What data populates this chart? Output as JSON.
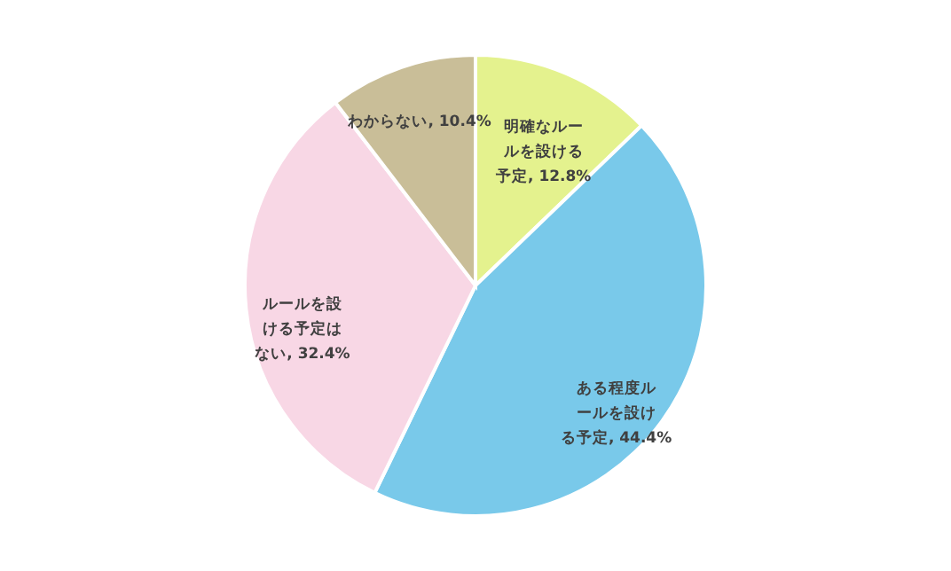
{
  "chart_data": {
    "type": "pie",
    "categories": [
      "明確なルールを設ける予定",
      "ある程度ルールを設ける予定",
      "ルールを設ける予定はない",
      "わからない"
    ],
    "values": [
      12.8,
      44.4,
      32.4,
      10.4
    ],
    "value_labels": [
      "12.8%",
      "44.4%",
      "32.4%",
      "10.4%"
    ],
    "colors": [
      "#e4f28e",
      "#79c9ea",
      "#f8d7e5",
      "#c9be98"
    ],
    "legend": false
  }
}
